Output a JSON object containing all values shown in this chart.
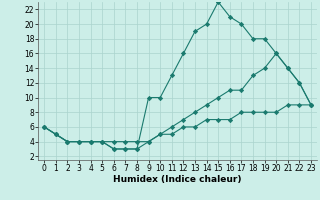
{
  "xlabel": "Humidex (Indice chaleur)",
  "background_color": "#cceee8",
  "line_color": "#1a7a6e",
  "grid_color": "#aad4ce",
  "xlim": [
    -0.5,
    23.5
  ],
  "ylim": [
    1.5,
    23
  ],
  "xticks": [
    0,
    1,
    2,
    3,
    4,
    5,
    6,
    7,
    8,
    9,
    10,
    11,
    12,
    13,
    14,
    15,
    16,
    17,
    18,
    19,
    20,
    21,
    22,
    23
  ],
  "yticks": [
    2,
    4,
    6,
    8,
    10,
    12,
    14,
    16,
    18,
    20,
    22
  ],
  "series1_x": [
    0,
    1,
    2,
    3,
    4,
    5,
    6,
    7,
    8,
    9,
    10,
    11,
    12,
    13,
    14,
    15,
    16,
    17,
    18,
    19,
    20,
    21,
    22,
    23
  ],
  "series1_y": [
    6,
    5,
    4,
    4,
    4,
    4,
    3,
    3,
    3,
    10,
    10,
    13,
    16,
    19,
    20,
    23,
    21,
    20,
    18,
    18,
    16,
    14,
    12,
    9
  ],
  "series2_x": [
    0,
    1,
    2,
    3,
    4,
    5,
    6,
    7,
    8,
    9,
    10,
    11,
    12,
    13,
    14,
    15,
    16,
    17,
    18,
    19,
    20,
    21,
    22,
    23
  ],
  "series2_y": [
    6,
    5,
    4,
    4,
    4,
    4,
    3,
    3,
    3,
    4,
    5,
    6,
    7,
    8,
    9,
    10,
    11,
    11,
    13,
    14,
    16,
    14,
    12,
    9
  ],
  "series3_x": [
    0,
    1,
    2,
    3,
    4,
    5,
    6,
    7,
    8,
    9,
    10,
    11,
    12,
    13,
    14,
    15,
    16,
    17,
    18,
    19,
    20,
    21,
    22,
    23
  ],
  "series3_y": [
    6,
    5,
    4,
    4,
    4,
    4,
    4,
    4,
    4,
    4,
    5,
    5,
    6,
    6,
    7,
    7,
    7,
    8,
    8,
    8,
    8,
    9,
    9,
    9
  ]
}
